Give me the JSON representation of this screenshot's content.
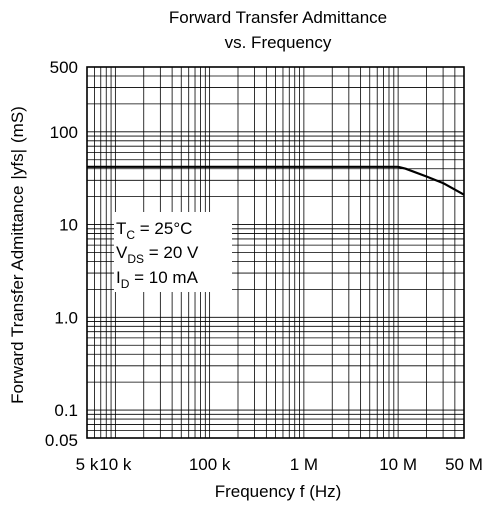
{
  "chart_data": {
    "type": "line",
    "title_line1": "Forward Transfer Admittance",
    "title_line2": "vs. Frequency",
    "xlabel": "Frequency  f  (Hz)",
    "ylabel_main": "Forward Transfer Admittance",
    "ylabel_symbol": "|yfs|",
    "ylabel_unit": "(mS)",
    "x_scale": "log",
    "y_scale": "log",
    "xlim": [
      5000,
      50000000
    ],
    "ylim": [
      0.05,
      500
    ],
    "grid": true,
    "x_ticks": [
      {
        "value": 5000,
        "label": "5 k"
      },
      {
        "value": 10000,
        "label": "10 k"
      },
      {
        "value": 100000,
        "label": "100 k"
      },
      {
        "value": 1000000,
        "label": "1 M"
      },
      {
        "value": 10000000,
        "label": "10 M"
      },
      {
        "value": 50000000,
        "label": "50 M"
      }
    ],
    "y_ticks": [
      {
        "value": 0.05,
        "label": "0.05"
      },
      {
        "value": 0.1,
        "label": "0.1"
      },
      {
        "value": 1,
        "label": "1.0"
      },
      {
        "value": 10,
        "label": "10"
      },
      {
        "value": 100,
        "label": "100"
      },
      {
        "value": 500,
        "label": "500"
      }
    ],
    "series": [
      {
        "x": [
          5000,
          10000,
          100000,
          1000000,
          10000000,
          12000000,
          20000000,
          30000000,
          50000000
        ],
        "y": [
          42,
          42,
          42,
          42,
          42,
          40,
          33,
          28,
          21
        ]
      }
    ],
    "conditions": {
      "tc_main": "T",
      "tc_sub": "C",
      "tc_val": " = 25°C",
      "vds_main": "V",
      "vds_sub": "DS",
      "vds_val": " = 20 V",
      "id_main": "I",
      "id_sub": "D",
      "id_val": " = 10 mA"
    }
  }
}
